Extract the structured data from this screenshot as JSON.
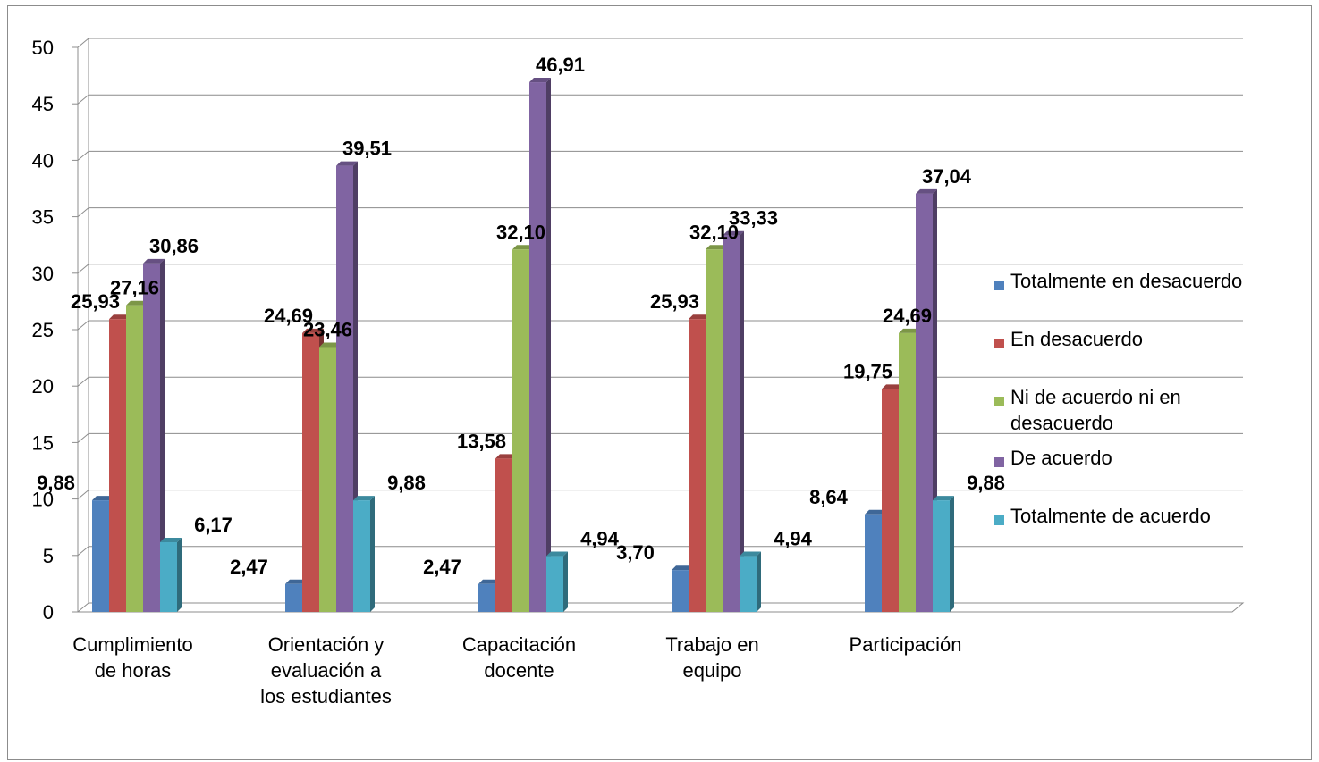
{
  "chart_data": {
    "type": "bar",
    "categories": [
      [
        "Cumplimiento",
        "de horas"
      ],
      [
        "Orientación y",
        "evaluación a",
        "los estudiantes"
      ],
      [
        "Capacitación",
        "docente"
      ],
      [
        "Trabajo en",
        "equipo"
      ],
      [
        "Participación"
      ]
    ],
    "series": [
      {
        "name": "Totalmente en desacuerdo",
        "label_lines": [
          "Totalmente en desacuerdo"
        ],
        "color": "#4F81BD",
        "values": [
          9.88,
          2.47,
          2.47,
          3.7,
          8.64
        ],
        "labels": [
          "9,88",
          "2,47",
          "2,47",
          "3,70",
          "8,64"
        ]
      },
      {
        "name": "En desacuerdo",
        "label_lines": [
          "En desacuerdo"
        ],
        "color": "#C0504D",
        "values": [
          25.93,
          24.69,
          13.58,
          25.93,
          19.75
        ],
        "labels": [
          "25,93",
          "24,69",
          "13,58",
          "25,93",
          "19,75"
        ]
      },
      {
        "name": "Ni de acuerdo ni en desacuerdo",
        "label_lines": [
          "Ni de acuerdo ni en",
          "desacuerdo"
        ],
        "color": "#9BBB59",
        "values": [
          27.16,
          23.46,
          32.1,
          32.1,
          24.69
        ],
        "labels": [
          "27,16",
          "23,46",
          "32,10",
          "32,10",
          "24,69"
        ]
      },
      {
        "name": "De acuerdo",
        "label_lines": [
          "De acuerdo"
        ],
        "color": "#8064A2",
        "values": [
          30.86,
          39.51,
          46.91,
          33.33,
          37.04
        ],
        "labels": [
          "30,86",
          "39,51",
          "46,91",
          "33,33",
          "37,04"
        ]
      },
      {
        "name": "Totalmente de acuerdo",
        "label_lines": [
          "Totalmente de acuerdo"
        ],
        "color": "#4BACC6",
        "values": [
          6.17,
          9.88,
          4.94,
          4.94,
          9.88
        ],
        "labels": [
          "6,17",
          "9,88",
          "4,94",
          "4,94",
          "9,88"
        ]
      }
    ],
    "yticks": [
      "0",
      "5",
      "10",
      "15",
      "20",
      "25",
      "30",
      "35",
      "40",
      "45",
      "50"
    ],
    "ylim": [
      0,
      50
    ],
    "grid": true,
    "legend": "right",
    "title": "",
    "xlabel": "",
    "ylabel": ""
  }
}
